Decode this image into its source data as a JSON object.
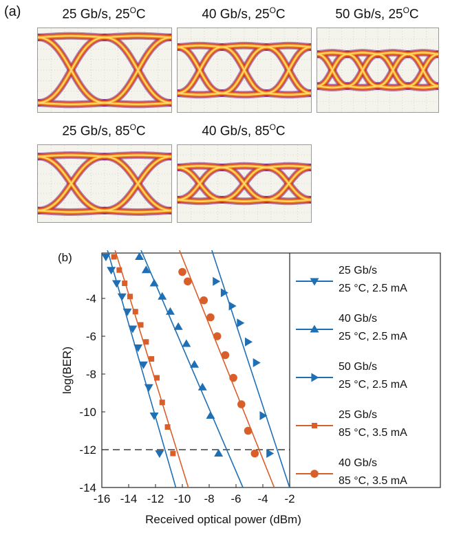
{
  "panel_a": {
    "label": "(a)",
    "eyes": [
      {
        "rate": "25 Gb/s",
        "temp": "25",
        "unit": "C",
        "bits": 2,
        "amp": 0.78
      },
      {
        "rate": "40 Gb/s",
        "temp": "25",
        "unit": "C",
        "bits": 3,
        "amp": 0.55
      },
      {
        "rate": "50 Gb/s",
        "temp": "25",
        "unit": "C",
        "bits": 4,
        "amp": 0.38
      },
      {
        "rate": "25 Gb/s",
        "temp": "85",
        "unit": "C",
        "bits": 2,
        "amp": 0.7
      },
      {
        "rate": "40 Gb/s",
        "temp": "85",
        "unit": "C",
        "bits": 3,
        "amp": 0.42
      }
    ]
  },
  "chart_data": {
    "type": "line",
    "panel_label": "(b)",
    "xlabel": "Received optical power (dBm)",
    "ylabel": "log(BER)",
    "xlim": [
      -16,
      -2
    ],
    "ylim": [
      -14,
      -1.6
    ],
    "xticks": [
      -16,
      -14,
      -12,
      -10,
      -8,
      -6,
      -4,
      -2
    ],
    "xtick_labels": [
      "-16",
      "-14",
      "-12",
      "-10",
      "-8",
      "-6",
      "-4",
      "-2"
    ],
    "yticks": [
      -4,
      -6,
      -8,
      -10,
      -12,
      -14
    ],
    "ytick_labels": [
      "-4",
      "-6",
      "-8",
      "-10",
      "-12",
      "-14"
    ],
    "threshold_y": -12,
    "series": [
      {
        "name": "25 Gb/s 25°C, 2.5 mA",
        "legend": [
          "25 Gb/s",
          "25 °C, 2.5 mA"
        ],
        "color": "#1f6fb4",
        "marker": "triangle-down",
        "x": [
          -15.7,
          -15.3,
          -14.9,
          -14.5,
          -14.1,
          -13.7,
          -13.3,
          -12.9,
          -12.5,
          -12.1,
          -11.7
        ],
        "y": [
          -1.8,
          -2.5,
          -3.2,
          -3.9,
          -4.7,
          -5.6,
          -6.6,
          -7.5,
          -8.7,
          -10.2,
          -12.2
        ]
      },
      {
        "name": "40 Gb/s 25°C, 2.5 mA",
        "legend": [
          "40 Gb/s",
          "25 °C, 2.5 mA"
        ],
        "color": "#1f6fb4",
        "marker": "triangle-up",
        "x": [
          -13.2,
          -12.7,
          -12.1,
          -11.5,
          -10.9,
          -10.3,
          -9.7,
          -9.1,
          -8.5,
          -7.9,
          -7.3
        ],
        "y": [
          -1.8,
          -2.5,
          -3.2,
          -3.9,
          -4.7,
          -5.5,
          -6.4,
          -7.5,
          -8.7,
          -10.2,
          -12.2
        ]
      },
      {
        "name": "50 Gb/s 25°C, 2.5 mA",
        "legend": [
          "50 Gb/s",
          "25 °C, 2.5 mA"
        ],
        "color": "#1f6fb4",
        "marker": "triangle-right",
        "x": [
          -7.5,
          -6.9,
          -6.3,
          -5.7,
          -5.1,
          -4.5,
          -4.0,
          -3.5
        ],
        "y": [
          -3.1,
          -3.7,
          -4.4,
          -5.3,
          -6.3,
          -7.4,
          -10.2,
          -12.2
        ]
      },
      {
        "name": "25 Gb/s 85°C, 3.5 mA",
        "legend": [
          "25 Gb/s",
          "85 °C, 3.5 mA"
        ],
        "color": "#d95f2a",
        "marker": "square",
        "x": [
          -15.1,
          -14.7,
          -14.3,
          -13.9,
          -13.5,
          -13.1,
          -12.7,
          -12.3,
          -11.9,
          -11.5,
          -11.1,
          -10.7
        ],
        "y": [
          -1.8,
          -2.5,
          -3.2,
          -3.9,
          -4.7,
          -5.4,
          -6.3,
          -7.2,
          -8.2,
          -9.5,
          -10.8,
          -12.2
        ]
      },
      {
        "name": "40 Gb/s 85°C, 3.5 mA",
        "legend": [
          "40 Gb/s",
          "85 °C, 3.5 mA"
        ],
        "color": "#d95f2a",
        "marker": "circle",
        "x": [
          -10.0,
          -9.6,
          -8.4,
          -7.9,
          -7.4,
          -6.8,
          -6.2,
          -5.6,
          -5.1,
          -4.6
        ],
        "y": [
          -2.6,
          -3.1,
          -4.1,
          -5.0,
          -6.0,
          -7.0,
          -8.2,
          -9.6,
          -11.0,
          -12.2
        ]
      }
    ]
  }
}
